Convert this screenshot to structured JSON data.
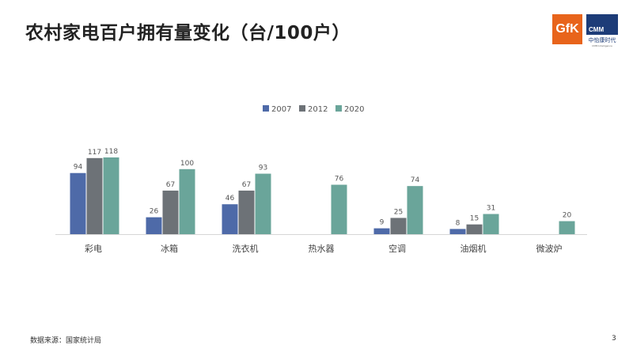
{
  "title": "农村家电百户拥有量变化（台/100户）",
  "logos": {
    "gfk": "GfK",
    "cmm": "CMM",
    "cmm_cn": "中怡康时代",
    "cmm_en": "CMM Intelligence"
  },
  "source": "数据来源：国家统计局",
  "page_number": "3",
  "chart_data": {
    "type": "bar",
    "title": "",
    "xlabel": "",
    "ylabel": "",
    "legend_position": "top-center",
    "grid": false,
    "categories": [
      "彩电",
      "冰箱",
      "洗衣机",
      "热水器",
      "空调",
      "油烟机",
      "微波炉"
    ],
    "series": [
      {
        "name": "2007",
        "color": "#4e6aa8",
        "values": [
          94,
          26,
          46,
          null,
          9,
          8,
          null
        ]
      },
      {
        "name": "2012",
        "color": "#6d7277",
        "values": [
          117,
          67,
          67,
          null,
          25,
          15,
          null
        ]
      },
      {
        "name": "2020",
        "color": "#6aa59a",
        "values": [
          118,
          100,
          93,
          76,
          74,
          31,
          20
        ]
      }
    ],
    "ylim": [
      0,
      118
    ]
  }
}
